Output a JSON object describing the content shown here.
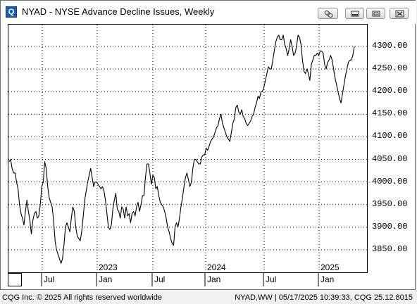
{
  "window": {
    "app_icon_letter": "Q",
    "title": "NYAD - NYSE Advance Decline Issues, Weekly",
    "buttons": [
      "link-icon",
      "minimize-icon",
      "restore-icon",
      "close-icon"
    ]
  },
  "chart_data": {
    "type": "line",
    "title": "NYAD - NYSE Advance Decline Issues, Weekly",
    "xlabel": "",
    "ylabel": "",
    "ylim": [
      3800,
      4350
    ],
    "y_ticks": [
      "4300.00",
      "4250.00",
      "4200.00",
      "4150.00",
      "4100.00",
      "4050.00",
      "4000.00",
      "3950.00",
      "3900.00",
      "3850.00"
    ],
    "x_ticks": [
      "Jul",
      "2023",
      "Jan",
      "Jul",
      "2024",
      "Jan",
      "Jul",
      "2025",
      "Jan"
    ],
    "grid": true,
    "series": [
      {
        "values": [
          4045,
          4050,
          4030,
          4020,
          4020,
          4000,
          3985,
          3950,
          3930,
          3920,
          3905,
          3935,
          3960,
          3935,
          3915,
          3885,
          3915,
          3930,
          3935,
          3920,
          3925,
          3950,
          3990,
          4000,
          4045,
          4030,
          3990,
          3965,
          3955,
          3945,
          3915,
          3870,
          3850,
          3840,
          3830,
          3820,
          3830,
          3860,
          3900,
          3910,
          3900,
          3890,
          3920,
          3945,
          3935,
          3900,
          3880,
          3875,
          3870,
          3890,
          3925,
          3960,
          3980,
          4000,
          4015,
          4030,
          4010,
          3990,
          4000,
          4000,
          3995,
          3990,
          3985,
          3990,
          3980,
          3960,
          3930,
          3900,
          3895,
          3905,
          3940,
          3960,
          3975,
          3940,
          3935,
          3920,
          3945,
          3940,
          3920,
          3945,
          3925,
          3930,
          3910,
          3930,
          3935,
          3925,
          3945,
          3955,
          3935,
          3950,
          3970,
          3970,
          4010,
          4040,
          4040,
          4020,
          3995,
          4015,
          4010,
          3985,
          3990,
          3970,
          3955,
          3950,
          3945,
          3935,
          3920,
          3900,
          3890,
          3875,
          3865,
          3860,
          3900,
          3910,
          3900,
          3920,
          3945,
          3965,
          3990,
          4010,
          4020,
          4005,
          3990,
          4000,
          4030,
          4050,
          4050,
          4045,
          4040,
          4040,
          4055,
          4060,
          4060,
          4075,
          4070,
          4080,
          4090,
          4095,
          4100,
          4110,
          4120,
          4125,
          4140,
          4150,
          4130,
          4120,
          4110,
          4100,
          4095,
          4090,
          4110,
          4130,
          4140,
          4165,
          4170,
          4155,
          4150,
          4160,
          4145,
          4140,
          4130,
          4125,
          4130,
          4135,
          4145,
          4150,
          4165,
          4175,
          4190,
          4185,
          4200,
          4200,
          4210,
          4225,
          4240,
          4255,
          4250,
          4250,
          4270,
          4290,
          4310,
          4320,
          4325,
          4315,
          4315,
          4325,
          4305,
          4295,
          4280,
          4295,
          4315,
          4300,
          4280,
          4285,
          4300,
          4325,
          4320,
          4305,
          4270,
          4245,
          4240,
          4250,
          4240,
          4225,
          4260,
          4270,
          4280,
          4280,
          4285,
          4280,
          4290,
          4290,
          4285,
          4260,
          4250,
          4265,
          4270,
          4280,
          4270,
          4250,
          4230,
          4215,
          4200,
          4185,
          4175,
          4195,
          4215,
          4235,
          4250,
          4265,
          4270,
          4270,
          4280,
          4300
        ]
      }
    ]
  },
  "status": {
    "left": "CQG Inc. © 2025 All rights reserved worldwide",
    "right": "NYAD,WW | 05/17/2025 10:39:33, CQG 25.12.8015"
  }
}
